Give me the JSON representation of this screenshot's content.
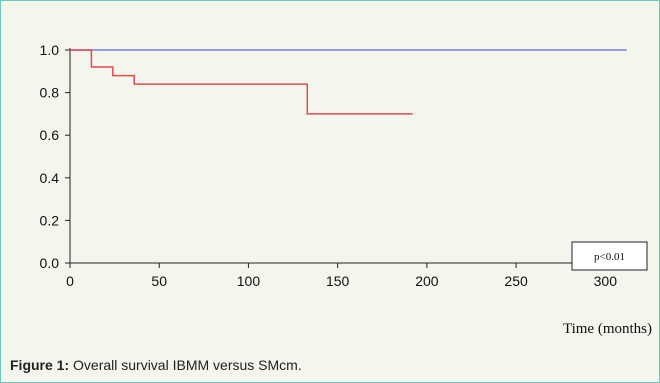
{
  "figure": {
    "caption_label": "Figure 1:",
    "caption_text": " Overall survival IBMM versus SMcm."
  },
  "chart_data": {
    "type": "line",
    "title": "",
    "xlabel": "Time (months)",
    "ylabel": "",
    "xlim": [
      0,
      320
    ],
    "ylim": [
      0,
      1.0
    ],
    "x_ticks": [
      "0",
      "50",
      "100",
      "150",
      "200",
      "250",
      "300"
    ],
    "y_ticks": [
      "0.0",
      "0.2",
      "0.4",
      "0.6",
      "0.8",
      "1.0"
    ],
    "grid": false,
    "annotation": "p<0.01",
    "series": [
      {
        "color": "#7b7bf0",
        "step": true,
        "points": [
          [
            0,
            1.0
          ],
          [
            312,
            1.0
          ]
        ]
      },
      {
        "color": "#e8474f",
        "step": true,
        "points": [
          [
            0,
            1.0
          ],
          [
            12,
            1.0
          ],
          [
            12,
            0.92
          ],
          [
            24,
            0.92
          ],
          [
            24,
            0.88
          ],
          [
            36,
            0.88
          ],
          [
            36,
            0.84
          ],
          [
            133,
            0.84
          ],
          [
            133,
            0.7
          ],
          [
            192,
            0.7
          ]
        ]
      }
    ]
  }
}
